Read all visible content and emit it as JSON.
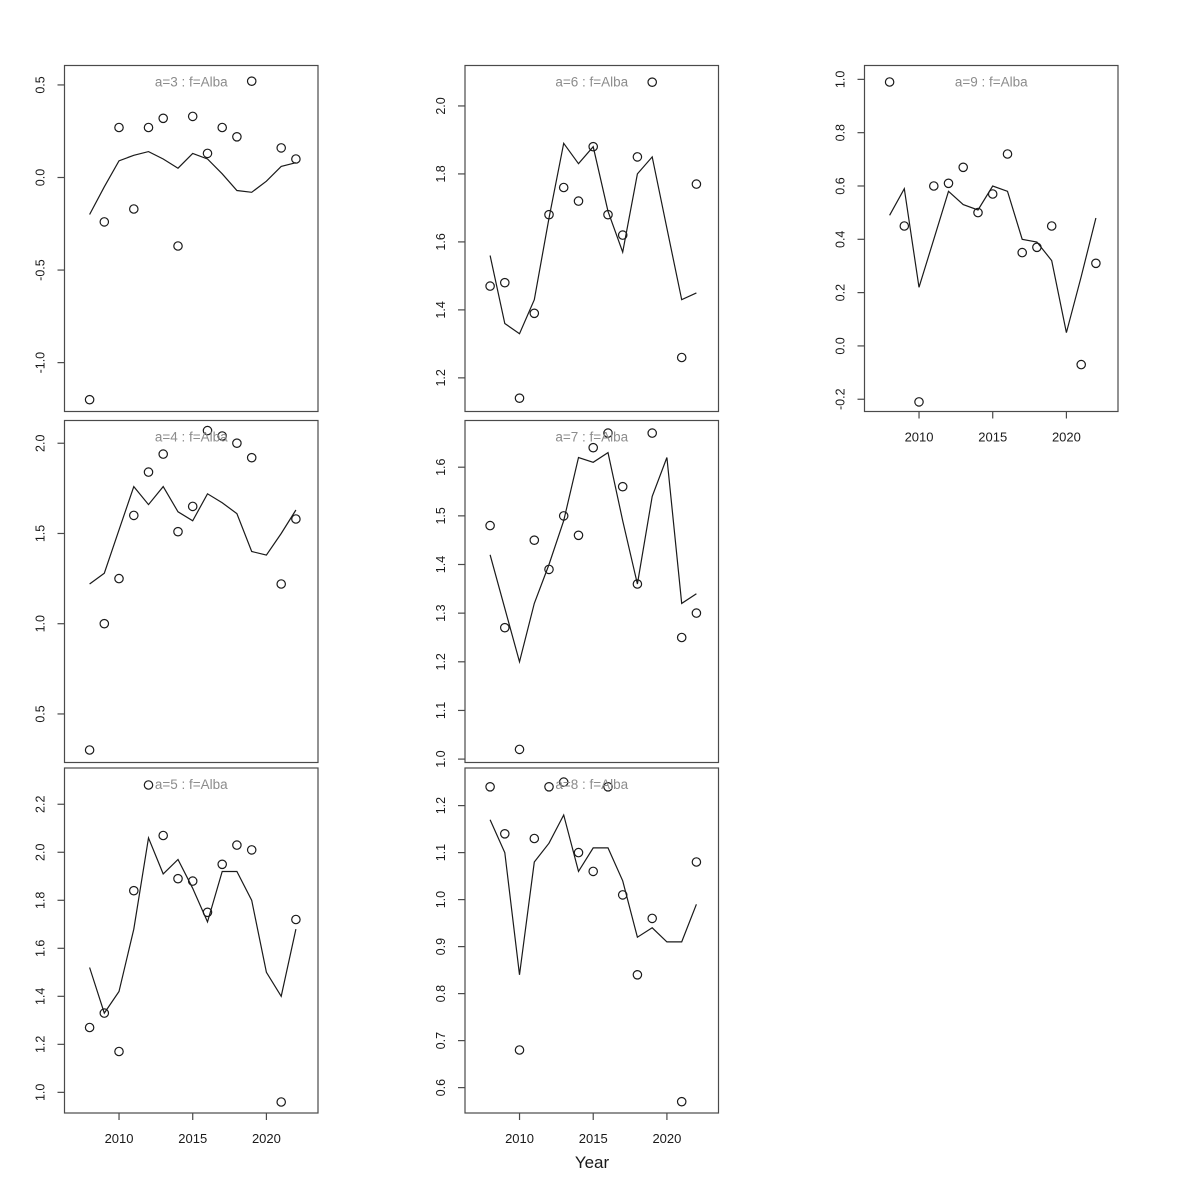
{
  "figure": {
    "xlabel": "Year",
    "x_tick_years": [
      2010,
      2015,
      2020
    ],
    "x_tick_labels": [
      "2010",
      "2015",
      "2020"
    ],
    "xlim": [
      2006.3,
      2023.5
    ],
    "background_color": "#ffffff",
    "panel_title_color": "#8c8c8c",
    "axis_color": "#4a4a4a",
    "data_color": "#1a1a1a"
  },
  "chart_data": [
    {
      "id": "a3",
      "type": "scatter",
      "title": "a=3 : f=Alba",
      "grid": {
        "row": 0,
        "col": 0
      },
      "show_x_axis": false,
      "ylim": [
        -1.264,
        0.605
      ],
      "yticks": [
        -1.0,
        -0.5,
        0.0,
        0.5
      ],
      "points": {
        "years": [
          2008,
          2009,
          2010,
          2011,
          2012,
          2013,
          2014,
          2015,
          2016,
          2017,
          2018,
          2019,
          2021,
          2022
        ],
        "values": [
          -1.2,
          -0.24,
          0.27,
          -0.17,
          0.27,
          0.32,
          -0.37,
          0.33,
          0.13,
          0.27,
          0.22,
          0.52,
          0.16,
          0.1
        ]
      },
      "line": {
        "years": [
          2008,
          2009,
          2010,
          2011,
          2012,
          2013,
          2014,
          2015,
          2016,
          2017,
          2018,
          2019,
          2020,
          2021,
          2022
        ],
        "values": [
          -0.2,
          -0.05,
          0.09,
          0.12,
          0.14,
          0.1,
          0.05,
          0.13,
          0.1,
          0.02,
          -0.07,
          -0.08,
          -0.02,
          0.06,
          0.08
        ]
      }
    },
    {
      "id": "a4",
      "type": "scatter",
      "title": "a=4 : f=Alba",
      "grid": {
        "row": 1,
        "col": 0
      },
      "show_x_axis": false,
      "ylim": [
        0.231,
        2.126
      ],
      "yticks": [
        0.5,
        1.0,
        1.5,
        2.0
      ],
      "points": {
        "years": [
          2008,
          2009,
          2010,
          2011,
          2012,
          2013,
          2014,
          2015,
          2016,
          2017,
          2018,
          2019,
          2021,
          2022
        ],
        "values": [
          0.3,
          1.0,
          1.25,
          1.6,
          1.84,
          1.94,
          1.51,
          1.65,
          2.07,
          2.04,
          2.0,
          1.92,
          1.22,
          1.58
        ]
      },
      "line": {
        "years": [
          2008,
          2009,
          2010,
          2011,
          2012,
          2013,
          2014,
          2015,
          2016,
          2017,
          2018,
          2019,
          2020,
          2021,
          2022
        ],
        "values": [
          1.22,
          1.28,
          1.52,
          1.76,
          1.66,
          1.76,
          1.62,
          1.57,
          1.72,
          1.67,
          1.61,
          1.4,
          1.38,
          1.5,
          1.63
        ]
      }
    },
    {
      "id": "a5",
      "type": "scatter",
      "title": "a=5 : f=Alba",
      "grid": {
        "row": 2,
        "col": 0
      },
      "show_x_axis": true,
      "ylim": [
        0.914,
        2.351
      ],
      "yticks": [
        1.0,
        1.2,
        1.4,
        1.6,
        1.8,
        2.0,
        2.2
      ],
      "points": {
        "years": [
          2008,
          2009,
          2010,
          2011,
          2012,
          2013,
          2014,
          2015,
          2016,
          2017,
          2018,
          2019,
          2021,
          2022
        ],
        "values": [
          1.27,
          1.33,
          1.17,
          1.84,
          2.28,
          2.07,
          1.89,
          1.88,
          1.75,
          1.95,
          2.03,
          2.01,
          0.96,
          1.72
        ]
      },
      "line": {
        "years": [
          2008,
          2009,
          2010,
          2011,
          2012,
          2013,
          2014,
          2015,
          2016,
          2017,
          2018,
          2019,
          2020,
          2021,
          2022
        ],
        "values": [
          1.52,
          1.33,
          1.42,
          1.68,
          2.06,
          1.91,
          1.97,
          1.85,
          1.71,
          1.92,
          1.92,
          1.8,
          1.5,
          1.4,
          1.68
        ]
      }
    },
    {
      "id": "a6",
      "type": "scatter",
      "title": "a=6 : f=Alba",
      "grid": {
        "row": 0,
        "col": 1
      },
      "show_x_axis": false,
      "ylim": [
        1.101,
        2.119
      ],
      "yticks": [
        1.2,
        1.4,
        1.6,
        1.8,
        2.0
      ],
      "points": {
        "years": [
          2008,
          2009,
          2010,
          2011,
          2012,
          2013,
          2014,
          2015,
          2016,
          2017,
          2018,
          2019,
          2021,
          2022
        ],
        "values": [
          1.47,
          1.48,
          1.14,
          1.39,
          1.68,
          1.76,
          1.72,
          1.88,
          1.68,
          1.62,
          1.85,
          2.07,
          1.26,
          1.77
        ]
      },
      "line": {
        "years": [
          2008,
          2009,
          2010,
          2011,
          2012,
          2013,
          2014,
          2015,
          2016,
          2017,
          2018,
          2019,
          2020,
          2021,
          2022
        ],
        "values": [
          1.56,
          1.36,
          1.33,
          1.43,
          1.67,
          1.89,
          1.83,
          1.88,
          1.69,
          1.57,
          1.8,
          1.85,
          1.64,
          1.43,
          1.45
        ]
      }
    },
    {
      "id": "a7",
      "type": "scatter",
      "title": "a=7 : f=Alba",
      "grid": {
        "row": 1,
        "col": 1
      },
      "show_x_axis": false,
      "ylim": [
        0.993,
        1.696
      ],
      "yticks": [
        1.0,
        1.1,
        1.2,
        1.3,
        1.4,
        1.5,
        1.6
      ],
      "points": {
        "years": [
          2008,
          2009,
          2010,
          2011,
          2012,
          2013,
          2014,
          2015,
          2016,
          2017,
          2018,
          2019,
          2021,
          2022
        ],
        "values": [
          1.48,
          1.27,
          1.02,
          1.45,
          1.39,
          1.5,
          1.46,
          1.64,
          1.67,
          1.56,
          1.36,
          1.67,
          1.25,
          1.3
        ]
      },
      "line": {
        "years": [
          2008,
          2009,
          2010,
          2011,
          2012,
          2013,
          2014,
          2015,
          2016,
          2017,
          2018,
          2019,
          2020,
          2021,
          2022
        ],
        "values": [
          1.42,
          1.31,
          1.2,
          1.32,
          1.4,
          1.49,
          1.62,
          1.61,
          1.63,
          1.49,
          1.36,
          1.54,
          1.62,
          1.32,
          1.34
        ]
      }
    },
    {
      "id": "a8",
      "type": "scatter",
      "title": "a=8 : f=Alba",
      "grid": {
        "row": 2,
        "col": 1
      },
      "show_x_axis": true,
      "ylim": [
        0.546,
        1.28
      ],
      "yticks": [
        0.6,
        0.7,
        0.8,
        0.9,
        1.0,
        1.1,
        1.2
      ],
      "points": {
        "years": [
          2008,
          2009,
          2010,
          2011,
          2012,
          2013,
          2014,
          2015,
          2016,
          2017,
          2018,
          2019,
          2021,
          2022
        ],
        "values": [
          1.24,
          1.14,
          0.68,
          1.13,
          1.24,
          1.25,
          1.1,
          1.06,
          1.24,
          1.01,
          0.84,
          0.96,
          0.57,
          1.08
        ]
      },
      "line": {
        "years": [
          2008,
          2009,
          2010,
          2011,
          2012,
          2013,
          2014,
          2015,
          2016,
          2017,
          2018,
          2019,
          2020,
          2021,
          2022
        ],
        "values": [
          1.17,
          1.1,
          0.84,
          1.08,
          1.12,
          1.18,
          1.06,
          1.11,
          1.11,
          1.04,
          0.92,
          0.94,
          0.91,
          0.91,
          0.99
        ]
      }
    },
    {
      "id": "a9",
      "type": "scatter",
      "title": "a=9 : f=Alba",
      "grid": {
        "row": 0,
        "col": 2
      },
      "show_x_axis": true,
      "ylim": [
        -0.246,
        1.052
      ],
      "yticks": [
        -0.2,
        0.0,
        0.2,
        0.4,
        0.6,
        0.8,
        1.0
      ],
      "points": {
        "years": [
          2008,
          2009,
          2010,
          2011,
          2012,
          2013,
          2014,
          2015,
          2016,
          2017,
          2018,
          2019,
          2021,
          2022
        ],
        "values": [
          0.99,
          0.45,
          -0.21,
          0.6,
          0.61,
          0.67,
          0.5,
          0.57,
          0.72,
          0.35,
          0.37,
          0.45,
          -0.07,
          0.31
        ]
      },
      "line": {
        "years": [
          2008,
          2009,
          2010,
          2011,
          2012,
          2013,
          2014,
          2015,
          2016,
          2017,
          2018,
          2019,
          2020,
          2021,
          2022
        ],
        "values": [
          0.49,
          0.59,
          0.22,
          0.4,
          0.58,
          0.53,
          0.51,
          0.6,
          0.58,
          0.4,
          0.39,
          0.32,
          0.05,
          0.26,
          0.48
        ]
      }
    }
  ]
}
